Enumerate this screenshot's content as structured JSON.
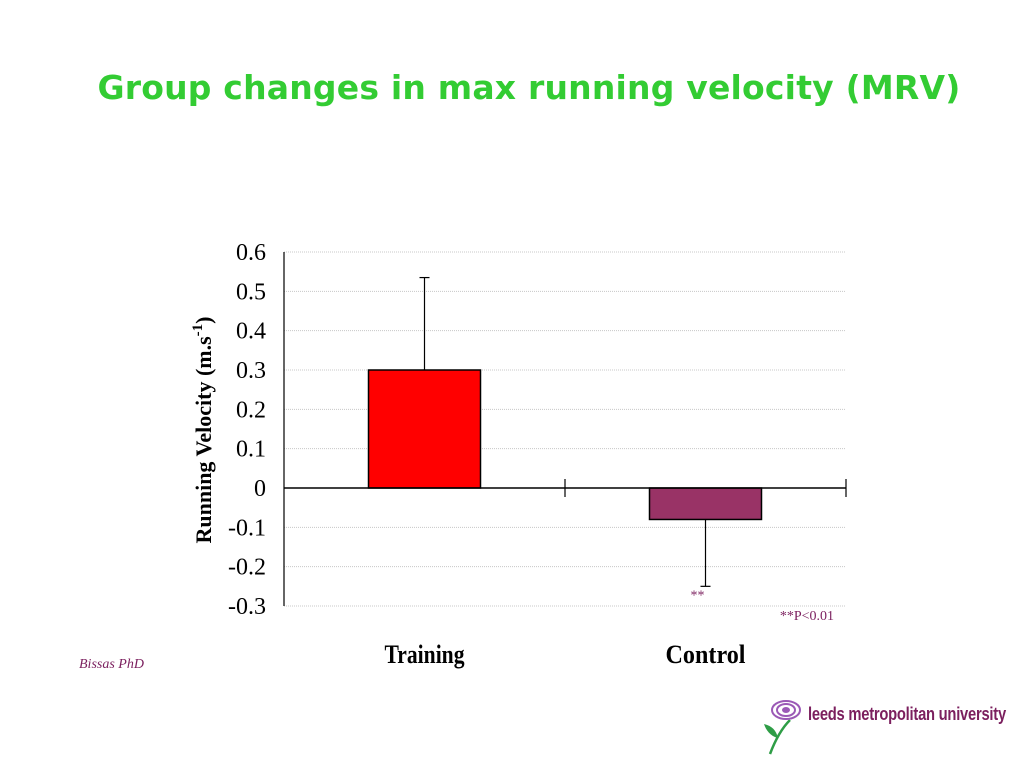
{
  "slide": {
    "title": "Group changes in max running velocity (MRV)",
    "author": "Bissas PhD",
    "logo_text": "leeds metropolitan university"
  },
  "colors": {
    "title": "#33cc33",
    "author": "#7b1f5e",
    "annotation": "#7b1f5e",
    "training_bar": "#ff0000",
    "control_bar": "#993366",
    "logo_text": "#7b1f5e",
    "logo_petals": "#9b59b6",
    "logo_stem": "#2e9d46"
  },
  "icons": {
    "logo": "rose-icon"
  },
  "chart_data": {
    "type": "bar",
    "categories": [
      "Training",
      "Control"
    ],
    "values": [
      0.3,
      -0.08
    ],
    "error_bars": [
      0.235,
      0.17
    ],
    "error_direction": [
      "up",
      "down"
    ],
    "colors": [
      "#ff0000",
      "#993366"
    ],
    "title": "",
    "xlabel": "",
    "ylabel": "Running Velocity (m.s-1)",
    "ylabel_parts": {
      "main": "Running Velocity (m.s",
      "sup": "-1",
      "close": ")"
    },
    "ylim": [
      -0.3,
      0.6
    ],
    "yticks": [
      "0.6",
      "0.5",
      "0.4",
      "0.3",
      "0.2",
      "0.1",
      "0",
      "-0.1",
      "-0.2",
      "-0.3"
    ],
    "ytick_values": [
      0.6,
      0.5,
      0.4,
      0.3,
      0.2,
      0.1,
      0,
      -0.1,
      -0.2,
      -0.3
    ],
    "grid": true,
    "annotations": [
      {
        "text": "**",
        "category": "Control",
        "value": -0.25
      },
      {
        "text": "**P<0.01",
        "position": "bottom-right"
      }
    ]
  }
}
